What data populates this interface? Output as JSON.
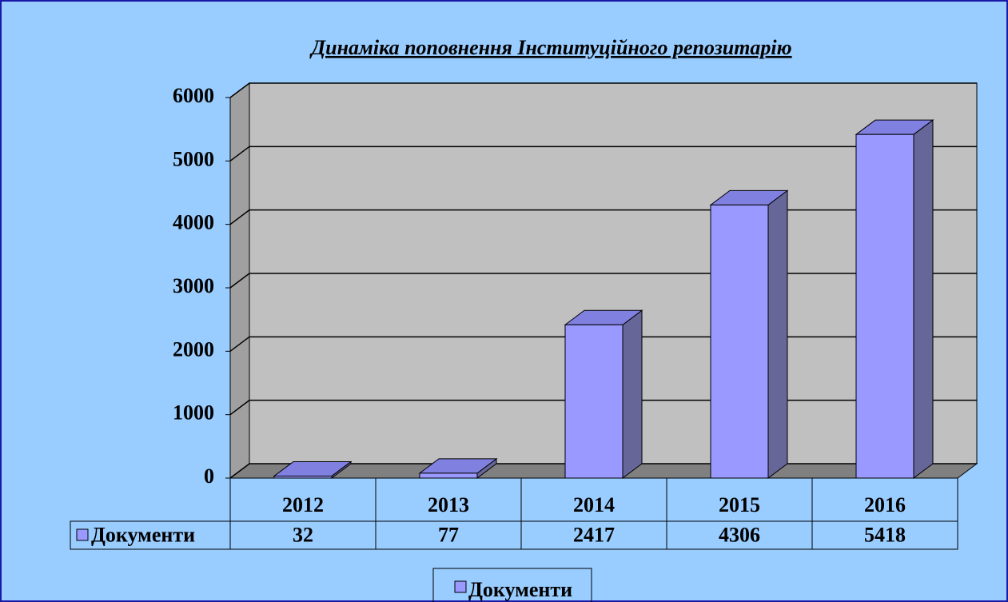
{
  "chart_data": {
    "type": "bar3d",
    "title": "Динаміка поповнення Інституційного репозитарію",
    "categories": [
      "2012",
      "2013",
      "2014",
      "2015",
      "2016"
    ],
    "series": [
      {
        "name": "Документи",
        "color": "#9999ff",
        "values": [
          32,
          77,
          2417,
          4306,
          5418
        ]
      }
    ],
    "ylim": [
      0,
      6000
    ],
    "yticks": [
      0,
      1000,
      2000,
      3000,
      4000,
      5000,
      6000
    ],
    "grid": true,
    "legend": "bottom",
    "data_table": true
  }
}
